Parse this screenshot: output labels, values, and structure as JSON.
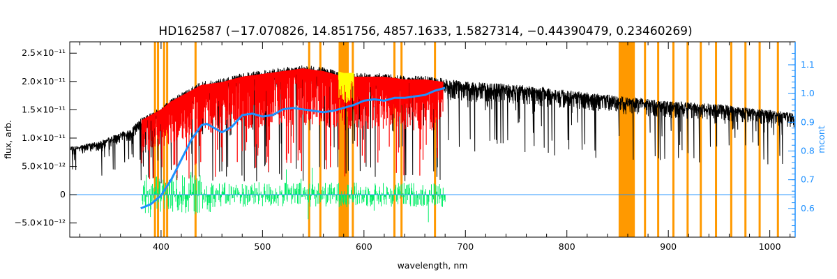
{
  "chart_data": {
    "type": "line",
    "title": "HD162587    (−17.070826, 14.851756, 4857.1633, 1.5827314, −0.44390479, 0.23460269)",
    "xlabel": "wavelength, nm",
    "ylabel": "flux, arb.",
    "y2label": "mcont",
    "xlim": [
      310,
      1025
    ],
    "ylim": [
      -7.5e-12,
      2.7e-11
    ],
    "y2lim": [
      0.5,
      1.18
    ],
    "x_ticks": [
      400,
      500,
      600,
      700,
      800,
      900,
      1000
    ],
    "x_tick_labels": [
      "400",
      "500",
      "600",
      "700",
      "800",
      "900",
      "1000"
    ],
    "y_ticks": [
      -5e-12,
      0,
      5e-12,
      1e-11,
      1.5e-11,
      2e-11,
      2.5e-11
    ],
    "y_tick_labels": [
      "−5.0×10⁻¹²",
      "0",
      "5.0×10⁻¹²",
      "1.0×10⁻¹¹",
      "1.5×10⁻¹¹",
      "2.0×10⁻¹¹",
      "2.5×10⁻¹¹"
    ],
    "y2_ticks": [
      0.6,
      0.7,
      0.8,
      0.9,
      1.0,
      1.1
    ],
    "y2_tick_labels": [
      "0.6",
      "0.7",
      "0.8",
      "0.9",
      "1.0",
      "1.1"
    ],
    "grid": false,
    "colors": {
      "observed": "#000000",
      "model": "#ff0000",
      "residual": "#00ee66",
      "masked": "#ffff00",
      "mask_band": "#ff9900",
      "continuum": "#1e90ff",
      "right_axis": "#1e90ff"
    },
    "mask_lines": [
      394,
      397,
      403,
      406,
      434,
      546,
      557,
      589,
      630,
      637,
      670,
      877,
      890,
      905,
      919,
      932,
      947,
      962,
      976,
      990,
      1008
    ],
    "mask_bands": [
      [
        575,
        585
      ],
      [
        851,
        867
      ]
    ],
    "continuum": {
      "x": [
        380,
        390,
        400,
        410,
        420,
        430,
        440,
        445,
        450,
        460,
        470,
        480,
        490,
        500,
        510,
        520,
        530,
        540,
        550,
        560,
        570,
        580,
        590,
        600,
        610,
        620,
        630,
        640,
        650,
        660,
        670,
        680
      ],
      "y": [
        0.6,
        0.615,
        0.645,
        0.7,
        0.77,
        0.84,
        0.89,
        0.895,
        0.885,
        0.865,
        0.885,
        0.925,
        0.93,
        0.92,
        0.925,
        0.945,
        0.95,
        0.945,
        0.94,
        0.935,
        0.94,
        0.95,
        0.96,
        0.975,
        0.98,
        0.975,
        0.985,
        0.985,
        0.99,
        0.995,
        1.01,
        1.02
      ]
    },
    "observed_envelope": {
      "x": [
        312,
        340,
        360,
        370,
        380,
        390,
        400,
        410,
        420,
        440,
        460,
        480,
        500,
        520,
        540,
        560,
        580,
        600,
        620,
        640,
        660,
        680,
        700,
        750,
        800,
        850,
        900,
        950,
        1000,
        1020
      ],
      "y": [
        8.5e-12,
        9.5e-12,
        1.1e-11,
        1.15e-11,
        1.35e-11,
        1.45e-11,
        1.55e-11,
        1.7e-11,
        1.8e-11,
        2e-11,
        2.05e-11,
        2.15e-11,
        2.2e-11,
        2.25e-11,
        2.3e-11,
        2.25e-11,
        2.15e-11,
        2.15e-11,
        2.15e-11,
        2.1e-11,
        2.1e-11,
        2.05e-11,
        2e-11,
        1.95e-11,
        1.85e-11,
        1.75e-11,
        1.65e-11,
        1.6e-11,
        1.5e-11,
        1.45e-11
      ]
    }
  }
}
